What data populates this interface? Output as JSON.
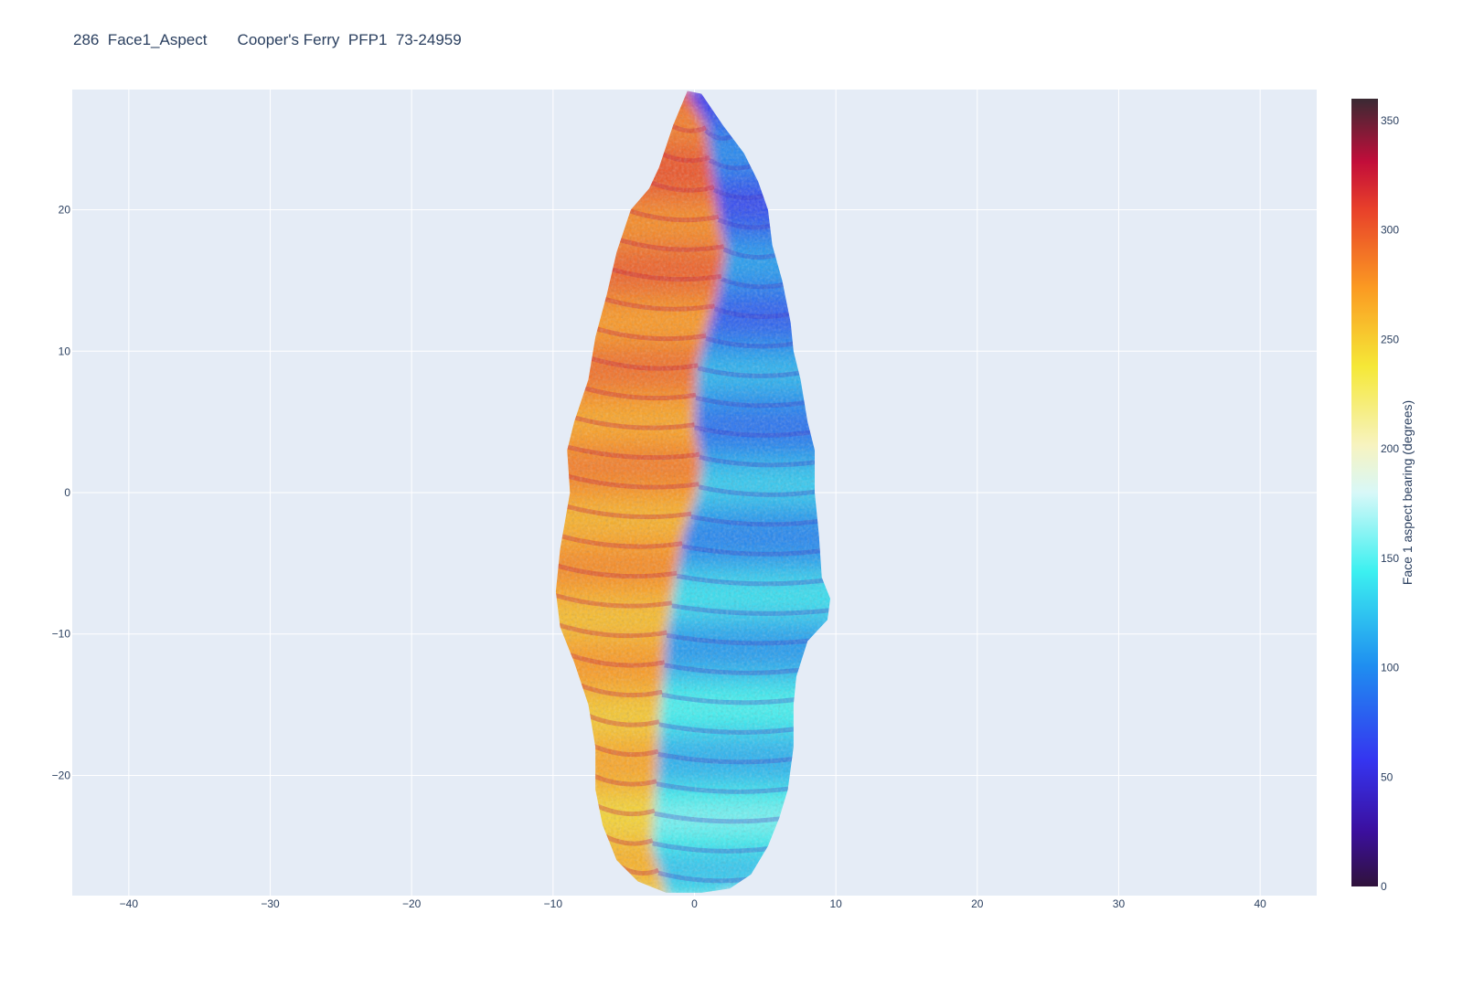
{
  "title": "286  Face1_Aspect       Cooper's Ferry  PFP1  73-24959",
  "colors": {
    "plot_background": "#e5ecf6",
    "grid": "#ffffff",
    "text": "#2a3f5f"
  },
  "chart_data": {
    "type": "heatmap",
    "title": "286  Face1_Aspect       Cooper's Ferry  PFP1  73-24959",
    "xlim": [
      -44,
      44
    ],
    "ylim": [
      -28.5,
      28.5
    ],
    "x_ticks": [
      -40,
      -30,
      -20,
      -10,
      0,
      10,
      20,
      30,
      40
    ],
    "y_ticks": [
      -20,
      -10,
      0,
      10,
      20
    ],
    "x_tick_labels": [
      "−40",
      "−30",
      "−20",
      "−10",
      "0",
      "10",
      "20",
      "30",
      "40"
    ],
    "y_tick_labels": [
      "−20",
      "−10",
      "0",
      "10",
      "20"
    ],
    "grid": true,
    "colorbar": {
      "title": "Face 1 aspect bearing (degrees)",
      "range": [
        0,
        360
      ],
      "ticks": [
        0,
        50,
        100,
        150,
        200,
        250,
        300,
        350
      ],
      "tick_labels": [
        "0",
        "50",
        "100",
        "150",
        "200",
        "250",
        "300",
        "350"
      ],
      "placement": "right",
      "colorscale": [
        [
          0.0,
          "#30123b"
        ],
        [
          0.07,
          "#3b0f9e"
        ],
        [
          0.16,
          "#3535f0"
        ],
        [
          0.28,
          "#1f8ef0"
        ],
        [
          0.4,
          "#3cf0f0"
        ],
        [
          0.5,
          "#d8f8f8"
        ],
        [
          0.56,
          "#f7f3c0"
        ],
        [
          0.66,
          "#f5e837"
        ],
        [
          0.76,
          "#fb9a22"
        ],
        [
          0.86,
          "#e8402a"
        ],
        [
          0.92,
          "#c20d3a"
        ],
        [
          1.0,
          "#3a2a33"
        ]
      ]
    },
    "outline": {
      "left_edge": [
        [
          -0.5,
          28.4
        ],
        [
          -1.5,
          26
        ],
        [
          -2.5,
          23
        ],
        [
          -3.2,
          21.5
        ],
        [
          -4.5,
          20
        ],
        [
          -5.5,
          17
        ],
        [
          -6.2,
          14
        ],
        [
          -7.0,
          11
        ],
        [
          -7.5,
          8
        ],
        [
          -8.5,
          5
        ],
        [
          -9.0,
          3
        ],
        [
          -8.8,
          0
        ],
        [
          -9.5,
          -4
        ],
        [
          -9.8,
          -7
        ],
        [
          -9.5,
          -9.5
        ],
        [
          -8.5,
          -12
        ],
        [
          -7.5,
          -15
        ],
        [
          -7.0,
          -18
        ],
        [
          -7.0,
          -21
        ],
        [
          -6.5,
          -23.5
        ],
        [
          -5.5,
          -26
        ],
        [
          -4.0,
          -27.5
        ],
        [
          -2.0,
          -28.3
        ],
        [
          0.5,
          -28.3
        ]
      ],
      "right_edge": [
        [
          -0.5,
          28.4
        ],
        [
          0.5,
          28.2
        ],
        [
          2.0,
          26
        ],
        [
          3.5,
          24
        ],
        [
          4.5,
          22
        ],
        [
          5.2,
          20
        ],
        [
          5.5,
          17.5
        ],
        [
          6.2,
          15
        ],
        [
          6.8,
          12
        ],
        [
          7.0,
          10
        ],
        [
          7.5,
          8
        ],
        [
          8.0,
          5
        ],
        [
          8.5,
          3
        ],
        [
          8.5,
          0
        ],
        [
          8.8,
          -3
        ],
        [
          9.0,
          -6
        ],
        [
          9.6,
          -7.5
        ],
        [
          9.4,
          -9
        ],
        [
          8.0,
          -10.5
        ],
        [
          7.2,
          -13
        ],
        [
          7.0,
          -15
        ],
        [
          7.0,
          -18
        ],
        [
          6.6,
          -21
        ],
        [
          6.0,
          -23
        ],
        [
          5.2,
          -25
        ],
        [
          4.0,
          -27
        ],
        [
          2.5,
          -28
        ],
        [
          0.5,
          -28.3
        ]
      ],
      "ridge": [
        [
          -0.5,
          28.4
        ],
        [
          0.8,
          26
        ],
        [
          1.2,
          23
        ],
        [
          1.8,
          19
        ],
        [
          2.2,
          17
        ],
        [
          1.6,
          14
        ],
        [
          1.0,
          12
        ],
        [
          0.2,
          9
        ],
        [
          0,
          5
        ],
        [
          0.5,
          2
        ],
        [
          0.2,
          0
        ],
        [
          -0.8,
          -3
        ],
        [
          -1.5,
          -7
        ],
        [
          -2.0,
          -10
        ],
        [
          -2.2,
          -13
        ],
        [
          -2.5,
          -16
        ],
        [
          -2.6,
          -19
        ],
        [
          -2.8,
          -22
        ],
        [
          -3.0,
          -25
        ],
        [
          -2.0,
          -28.3
        ]
      ]
    }
  }
}
